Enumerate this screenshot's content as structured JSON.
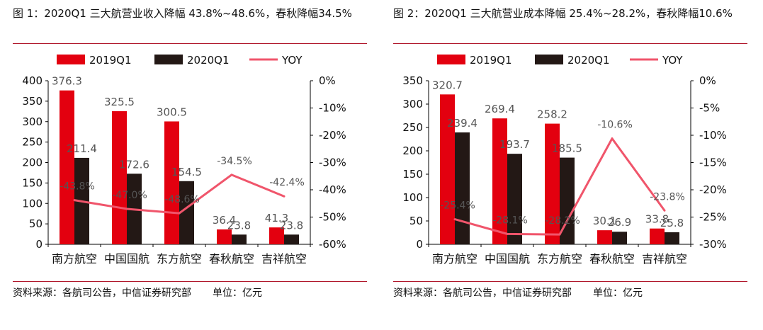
{
  "colors": {
    "y2019": "#e3000f",
    "y2020": "#231815",
    "yoy": "#f0556b",
    "divider": "#b0172b"
  },
  "source": {
    "text": "资料来源：各航司公告，中信证券研究部",
    "unit": "单位：亿元"
  },
  "legend": {
    "s2019": "2019Q1",
    "s2020": "2020Q1",
    "yoy": "YOY"
  },
  "chart_data": [
    {
      "type": "bar",
      "title": "图 1：2020Q1 三大航营业收入降幅 43.8%~48.6%，春秋降幅34.5%",
      "categories": [
        "南方航空",
        "中国国航",
        "东方航空",
        "春秋航空",
        "吉祥航空"
      ],
      "series": [
        {
          "name": "2019Q1",
          "values": [
            376.3,
            325.5,
            300.5,
            36.4,
            41.3
          ],
          "labels": [
            "376.3",
            "325.5",
            "300.5",
            "36.4",
            "41.3"
          ]
        },
        {
          "name": "2020Q1",
          "values": [
            211.4,
            172.6,
            154.5,
            23.8,
            23.8
          ],
          "labels": [
            "211.4",
            "172.6",
            "154.5",
            "23.8",
            "23.8"
          ]
        },
        {
          "name": "YOY",
          "type": "line",
          "axis": "right",
          "values": [
            -43.8,
            -47.0,
            -48.6,
            -34.5,
            -42.4
          ],
          "labels": [
            "-43.8%",
            "-47.0%",
            "-48.6%",
            "-34.5%",
            "-42.4%"
          ]
        }
      ],
      "ylim": [
        0,
        400
      ],
      "yticks": [
        "0",
        "50",
        "100",
        "150",
        "200",
        "250",
        "300",
        "350",
        "400"
      ],
      "ylim_right": [
        -60,
        0
      ],
      "yticks_right": [
        "-60%",
        "-50%",
        "-40%",
        "-30%",
        "-20%",
        "-10%",
        "0%"
      ],
      "legend_position": "top"
    },
    {
      "type": "bar",
      "title": "图 2：2020Q1 三大航营业成本降幅 25.4%~28.2%，春秋降幅10.6%",
      "categories": [
        "南方航空",
        "中国国航",
        "东方航空",
        "春秋航空",
        "吉祥航空"
      ],
      "series": [
        {
          "name": "2019Q1",
          "values": [
            320.7,
            269.4,
            258.2,
            30.1,
            33.8
          ],
          "labels": [
            "320.7",
            "269.4",
            "258.2",
            "30.1",
            "33.8"
          ]
        },
        {
          "name": "2020Q1",
          "values": [
            239.4,
            193.7,
            185.5,
            26.9,
            25.8
          ],
          "labels": [
            "239.4",
            "193.7",
            "185.5",
            "26.9",
            "25.8"
          ]
        },
        {
          "name": "YOY",
          "type": "line",
          "axis": "right",
          "values": [
            -25.4,
            -28.1,
            -28.2,
            -10.6,
            -23.8
          ],
          "labels": [
            "-25.4%",
            "-28.1%",
            "-28.2%",
            "-10.6%",
            "-23.8%"
          ]
        }
      ],
      "ylim": [
        0,
        350
      ],
      "yticks": [
        "0",
        "50",
        "100",
        "150",
        "200",
        "250",
        "300",
        "350"
      ],
      "ylim_right": [
        -30,
        0
      ],
      "yticks_right": [
        "-30%",
        "-25%",
        "-20%",
        "-15%",
        "-10%",
        "-5%",
        "0%"
      ],
      "legend_position": "top"
    }
  ]
}
